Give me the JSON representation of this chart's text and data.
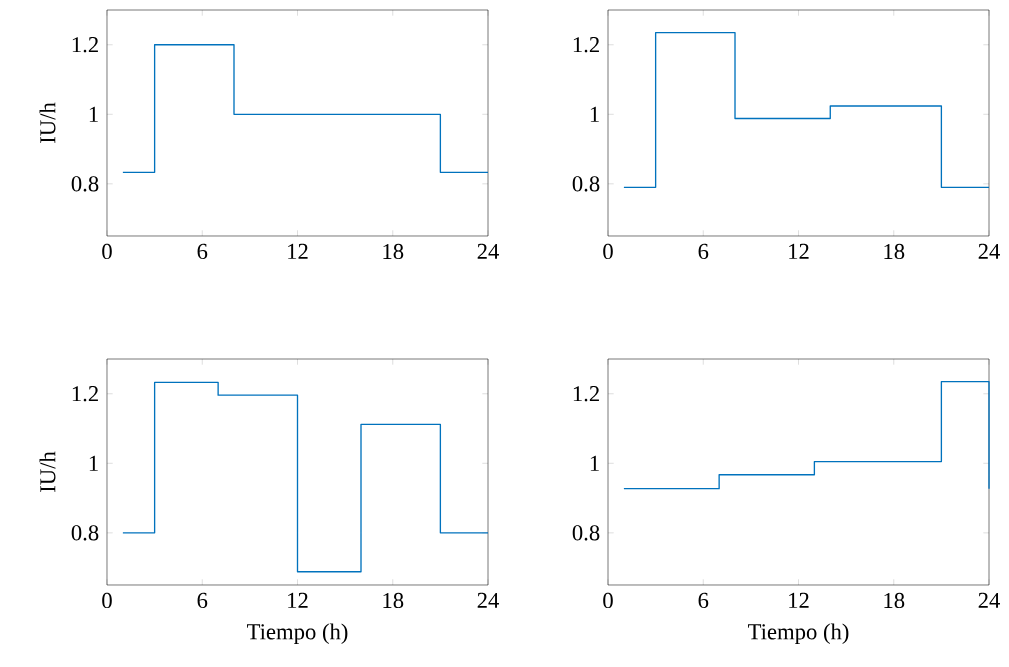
{
  "chart_data": [
    {
      "type": "step",
      "ylabel": "IU/h",
      "x": [
        1,
        3,
        8,
        21,
        24
      ],
      "values": [
        0.833,
        1.2,
        1,
        0.833,
        0.833
      ],
      "color": "#0072bd",
      "xlim": [
        0,
        24
      ],
      "ylim": [
        0.65,
        1.3
      ],
      "xticks": [
        0,
        6,
        12,
        18,
        24
      ],
      "yticks": [
        0.8,
        1,
        1.2
      ]
    },
    {
      "type": "step",
      "x": [
        1,
        3,
        8,
        14,
        21,
        24
      ],
      "values": [
        0.79,
        1.235,
        0.988,
        1.024,
        0.79,
        0.79
      ],
      "color": "#0072bd",
      "xlim": [
        0,
        24
      ],
      "ylim": [
        0.65,
        1.3
      ],
      "xticks": [
        0,
        6,
        12,
        18,
        24
      ],
      "yticks": [
        0.8,
        1,
        1.2
      ]
    },
    {
      "type": "step",
      "ylabel": "IU/h",
      "xlabel": "Tiempo (h)",
      "x": [
        1,
        3,
        7,
        12,
        16,
        21,
        24
      ],
      "values": [
        0.8,
        1.233,
        1.196,
        0.688,
        1.112,
        0.8,
        0.8
      ],
      "color": "#0072bd",
      "xlim": [
        0,
        24
      ],
      "ylim": [
        0.65,
        1.3
      ],
      "xticks": [
        0,
        6,
        12,
        18,
        24
      ],
      "yticks": [
        0.8,
        1,
        1.2
      ]
    },
    {
      "type": "step",
      "xlabel": "Tiempo (h)",
      "x": [
        1,
        7,
        13,
        21,
        24
      ],
      "values": [
        0.927,
        0.967,
        1.005,
        1.235,
        0.927
      ],
      "color": "#0072bd",
      "xlim": [
        0,
        24
      ],
      "ylim": [
        0.65,
        1.3
      ],
      "xticks": [
        0,
        6,
        12,
        18,
        24
      ],
      "yticks": [
        0.8,
        1,
        1.2
      ]
    }
  ]
}
